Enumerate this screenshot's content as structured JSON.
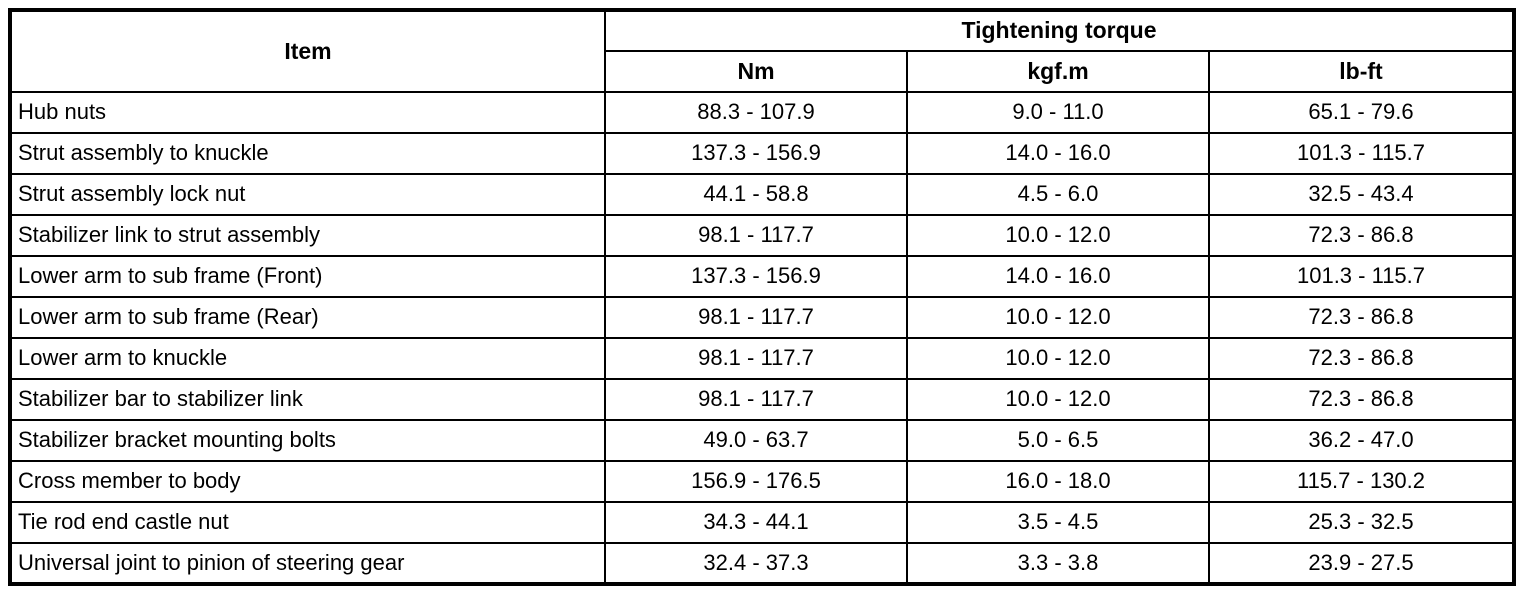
{
  "table": {
    "header": {
      "item_label": "Item",
      "group_label": "Tightening torque",
      "units": {
        "nm": "Nm",
        "kgfm": "kgf.m",
        "lbft": "lb-ft"
      }
    },
    "rows": [
      {
        "item": "Hub nuts",
        "nm": "88.3 - 107.9",
        "kgfm": "9.0 - 11.0",
        "lbft": "65.1 - 79.6"
      },
      {
        "item": "Strut assembly to knuckle",
        "nm": "137.3 - 156.9",
        "kgfm": "14.0 - 16.0",
        "lbft": "101.3 - 115.7"
      },
      {
        "item": "Strut assembly lock nut",
        "nm": "44.1 - 58.8",
        "kgfm": "4.5 - 6.0",
        "lbft": "32.5 - 43.4"
      },
      {
        "item": "Stabilizer link to strut assembly",
        "nm": "98.1 - 117.7",
        "kgfm": "10.0 - 12.0",
        "lbft": "72.3 - 86.8"
      },
      {
        "item": "Lower arm to sub frame (Front)",
        "nm": "137.3 - 156.9",
        "kgfm": "14.0 - 16.0",
        "lbft": "101.3 - 115.7"
      },
      {
        "item": "Lower arm to sub frame (Rear)",
        "nm": "98.1 - 117.7",
        "kgfm": "10.0 - 12.0",
        "lbft": "72.3 - 86.8"
      },
      {
        "item": "Lower arm to knuckle",
        "nm": "98.1 - 117.7",
        "kgfm": "10.0 - 12.0",
        "lbft": "72.3 - 86.8"
      },
      {
        "item": "Stabilizer bar to stabilizer link",
        "nm": "98.1 - 117.7",
        "kgfm": "10.0 - 12.0",
        "lbft": "72.3 - 86.8"
      },
      {
        "item": "Stabilizer bracket mounting bolts",
        "nm": "49.0 - 63.7",
        "kgfm": "5.0 - 6.5",
        "lbft": "36.2 - 47.0"
      },
      {
        "item": "Cross member to body",
        "nm": "156.9 - 176.5",
        "kgfm": "16.0 - 18.0",
        "lbft": "115.7 - 130.2"
      },
      {
        "item": "Tie rod end castle nut",
        "nm": "34.3 - 44.1",
        "kgfm": "3.5 - 4.5",
        "lbft": "25.3 - 32.5"
      },
      {
        "item": "Universal joint to pinion of steering gear",
        "nm": "32.4 - 37.3",
        "kgfm": "3.3 - 3.8",
        "lbft": "23.9 - 27.5"
      }
    ]
  }
}
